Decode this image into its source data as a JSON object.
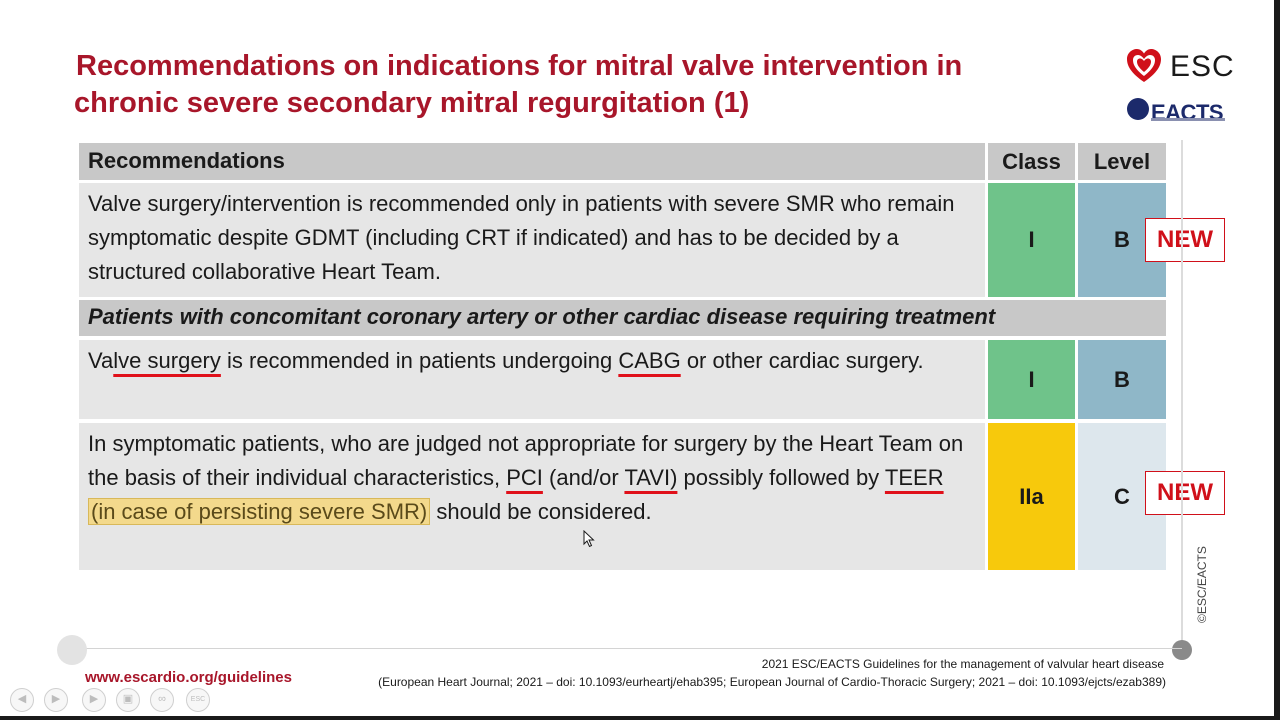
{
  "title": {
    "line1": "Recommendations on indications for mitral valve intervention in",
    "line2": "chronic severe secondary mitral regurgitation (1)"
  },
  "logos": {
    "esc": "ESC",
    "eacts": "EACTS"
  },
  "table": {
    "headers": {
      "recommendations": "Recommendations",
      "class": "Class",
      "level": "Level"
    },
    "row1": {
      "text": "Valve surgery/intervention is recommended only in patients with severe SMR who remain symptomatic despite GDMT (including CRT if indicated) and has to be decided by a structured collaborative Heart Team.",
      "class": "I",
      "level": "B",
      "badge": "NEW"
    },
    "section": "Patients with concomitant coronary artery or other cardiac disease requiring treatment",
    "row2": {
      "t1": "Va",
      "t2": "lve surgery",
      "t3": " is recommended in patients undergoing ",
      "t4": "CABG",
      "t5": " or other cardiac surgery.",
      "class": "I",
      "level": "B"
    },
    "row3": {
      "t1": "In symptomatic patients, who are judged not appropriate for surgery by the Heart Team on the basis of their individual characteristics, ",
      "t2": "PCI",
      "t3": " (and/or ",
      "t4": "TAVI)",
      "t5": " possibly followed by ",
      "t6": "TEER",
      "t7": " ",
      "t8": "(in case of persisting severe SMR)",
      "t9": " should be considered.",
      "class": "IIa",
      "level": "C",
      "badge": "NEW"
    }
  },
  "footer": {
    "url": "www.escardio.org/guidelines",
    "citation_line1": "2021 ESC/EACTS Guidelines for the management of valvular heart disease",
    "citation_line2": "(European Heart Journal; 2021 – doi: 10.1093/eurheartj/ehab395; European Journal of Cardio-Thoracic Surgery; 2021 – doi: 10.1093/ejcts/ezab389)",
    "copyright": "©ESC/EACTS"
  },
  "colors": {
    "title": "#a8162a",
    "class_I": "#6fc38a",
    "level_B": "#8fb7c8",
    "class_IIa": "#f7c90c",
    "level_C": "#dde7ed",
    "new_badge": "#d0101a"
  },
  "player": {
    "icons": [
      "prev-icon",
      "play-icon",
      "next-icon",
      "copy-icon",
      "link-icon",
      "esc-icon"
    ]
  }
}
